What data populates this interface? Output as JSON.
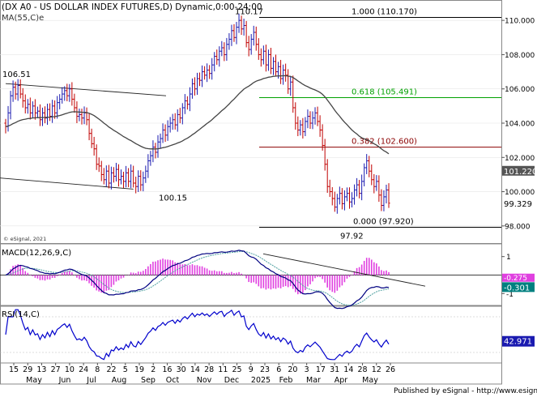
{
  "header": {
    "title": "(DX A0 - US DOLLAR INDEX FUTURES,D) Dynamic,0:00-24:00",
    "ma_label": "MA(55,C)e",
    "copyright": "© eSignal, 2021"
  },
  "footer": {
    "published": "Published by eSignal - http://www.esignal.com"
  },
  "colors": {
    "bull_bar": "#1a1ab0",
    "bear_bar": "#c00000",
    "ma": "#444444",
    "fib_100": "#000000",
    "fib_618": "#00a000",
    "fib_382": "#8b0000",
    "fib_000": "#000000",
    "macd_line": "#000080",
    "macd_signal": "#4fa0a0",
    "macd_hist": "#e040e0",
    "rsi": "#0000cc"
  },
  "chart_data": [
    {
      "type": "candlestick",
      "panel": "price",
      "title": "(DX A0 - US DOLLAR INDEX FUTURES,D) Dynamic,0:00-24:00",
      "ylim": [
        97.0,
        111.0
      ],
      "y_ticks": [
        "110.000",
        "108.000",
        "106.000",
        "104.000",
        "102.000",
        "100.000",
        "98.000"
      ],
      "last_price": "99.329",
      "ma_last": "101.220",
      "x_tick_labels": [
        "15",
        "29",
        "13",
        "27",
        "10",
        "24",
        "8",
        "22",
        "5",
        "19",
        "2",
        "16",
        "30",
        "14",
        "28",
        "11",
        "25",
        "9",
        "23",
        "6",
        "20",
        "3",
        "17",
        "31",
        "14",
        "28",
        "12",
        "26"
      ],
      "x_month_labels": [
        "May",
        "Jun",
        "Jul",
        "Aug",
        "Sep",
        "Oct",
        "Nov",
        "Dec",
        "2025",
        "Feb",
        "Mar",
        "Apr",
        "May"
      ],
      "closes": [
        103.8,
        104.6,
        105.6,
        106.1,
        105.7,
        106.2,
        105.7,
        105.3,
        104.9,
        105.1,
        104.6,
        105.0,
        104.6,
        104.7,
        104.2,
        104.6,
        104.3,
        104.8,
        104.4,
        105.0,
        104.6,
        105.2,
        105.4,
        105.7,
        105.9,
        105.6,
        106.0,
        105.4,
        104.9,
        104.4,
        104.5,
        104.3,
        104.6,
        104.2,
        103.4,
        102.8,
        102.5,
        101.6,
        101.5,
        101.0,
        100.7,
        101.2,
        100.5,
        101.1,
        100.9,
        101.3,
        100.7,
        100.9,
        100.6,
        101.1,
        100.6,
        101.2,
        100.5,
        100.3,
        100.9,
        100.4,
        100.8,
        101.2,
        101.8,
        102.1,
        102.6,
        102.3,
        102.9,
        103.1,
        103.6,
        103.3,
        103.8,
        104.0,
        104.2,
        103.9,
        104.5,
        104.3,
        104.9,
        105.3,
        105.1,
        105.7,
        106.3,
        106.0,
        106.6,
        106.5,
        107.0,
        106.8,
        107.1,
        106.9,
        107.4,
        107.9,
        107.7,
        108.2,
        108.4,
        108.0,
        108.6,
        108.9,
        109.4,
        109.0,
        109.6,
        110.0,
        109.5,
        109.7,
        108.7,
        108.3,
        108.9,
        109.3,
        108.6,
        108.0,
        107.7,
        108.2,
        107.4,
        108.0,
        107.2,
        107.6,
        107.0,
        107.3,
        106.6,
        107.1,
        106.8,
        106.0,
        106.4,
        104.9,
        104.0,
        103.6,
        103.9,
        103.5,
        104.1,
        104.4,
        104.0,
        104.3,
        104.6,
        104.1,
        103.6,
        102.7,
        101.6,
        100.3,
        100.0,
        99.6,
        99.1,
        99.6,
        99.9,
        99.3,
        99.7,
        99.9,
        99.4,
        99.6,
        100.1,
        100.4,
        99.9,
        100.6,
        101.4,
        101.8,
        101.2,
        100.7,
        100.3,
        100.6,
        99.8,
        99.2,
        99.7,
        100.1,
        99.329
      ],
      "range_start": {
        "value": 106.51,
        "label": "106.51"
      },
      "range_end": {
        "value": 100.15,
        "label": "100.15"
      },
      "swing_high": {
        "value": 110.17,
        "label": "110.17"
      },
      "swing_low": {
        "value": 97.92,
        "label": "97.92"
      },
      "fib_levels": [
        {
          "ratio": "1.000",
          "value": 110.17,
          "label": "1.000 (110.170)"
        },
        {
          "ratio": "0.618",
          "value": 105.491,
          "label": "0.618 (105.491)"
        },
        {
          "ratio": "0.382",
          "value": 102.6,
          "label": "0.382 (102.600)"
        },
        {
          "ratio": "0.000",
          "value": 97.92,
          "label": "0.000 (97.920)"
        }
      ]
    },
    {
      "type": "line",
      "panel": "macd",
      "title": "MACD(12,26,9,C)",
      "y_ticks": [
        "1",
        "-1"
      ],
      "ylim": [
        -1.6,
        1.6
      ],
      "macd_last": "-0.301",
      "signal_last": "-0.275"
    },
    {
      "type": "line",
      "panel": "rsi",
      "title": "RSI(14,C)",
      "ylim": [
        20,
        80
      ],
      "rsi_last": "42.971"
    }
  ]
}
